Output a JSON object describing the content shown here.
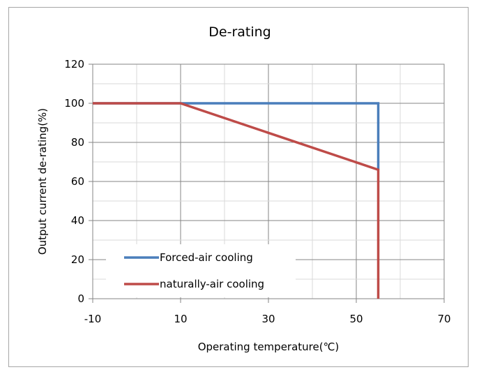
{
  "chart_data": {
    "type": "line",
    "title": "De-rating",
    "xlabel": "Operating temperature(℃)",
    "ylabel": "Output current de-rating(%)",
    "xlim": [
      -10,
      70
    ],
    "ylim": [
      0,
      120
    ],
    "xticks": [
      -10,
      10,
      30,
      50,
      70
    ],
    "yticks": [
      0,
      20,
      40,
      60,
      80,
      100,
      120
    ],
    "x_minor_step": 10,
    "y_minor_step": 10,
    "grid": true,
    "legend_position": "bottom-left",
    "series": [
      {
        "name": "Forced-air cooling",
        "color": "#4a7ebb",
        "points": [
          [
            -10,
            100
          ],
          [
            10,
            100
          ],
          [
            55,
            100
          ],
          [
            55,
            66
          ]
        ]
      },
      {
        "name": "naturally-air cooling",
        "color": "#be4b48",
        "points": [
          [
            -10,
            100
          ],
          [
            10,
            100
          ],
          [
            55,
            66
          ],
          [
            55,
            0
          ]
        ]
      }
    ]
  }
}
